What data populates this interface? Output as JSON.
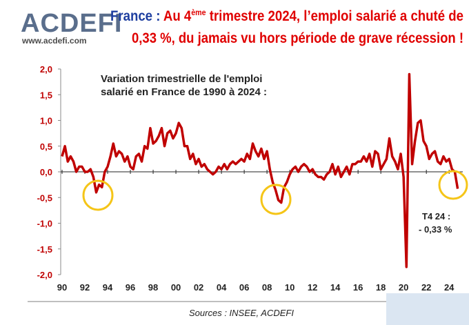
{
  "header": {
    "logo": "ACDEFI",
    "website": "www.acdefi.com",
    "title_label": "France :",
    "title": [
      "Au 4",
      "ème",
      "trimestre 2024, l’emploi salarié a chuté de",
      "0,33 %, du jamais vu hors période de grave récession !"
    ]
  },
  "chart_data": {
    "type": "line",
    "title": [
      "Variation trimestrielle de l'emploi",
      "salarié en France de 1990 à 2024 :"
    ],
    "annotation": [
      "T4 24 :",
      "- 0,33 %"
    ],
    "source": "Sources : INSEE, ACDEFI",
    "x": [
      1990,
      1990.25,
      1990.5,
      1990.75,
      1991,
      1991.25,
      1991.5,
      1991.75,
      1992,
      1992.25,
      1992.5,
      1992.75,
      1993,
      1993.25,
      1993.5,
      1993.75,
      1994,
      1994.25,
      1994.5,
      1994.75,
      1995,
      1995.25,
      1995.5,
      1995.75,
      1996,
      1996.25,
      1996.5,
      1996.75,
      1997,
      1997.25,
      1997.5,
      1997.75,
      1998,
      1998.25,
      1998.5,
      1998.75,
      1999,
      1999.25,
      1999.5,
      1999.75,
      2000,
      2000.25,
      2000.5,
      2000.75,
      2001,
      2001.25,
      2001.5,
      2001.75,
      2002,
      2002.25,
      2002.5,
      2002.75,
      2003,
      2003.25,
      2003.5,
      2003.75,
      2004,
      2004.25,
      2004.5,
      2004.75,
      2005,
      2005.25,
      2005.5,
      2005.75,
      2006,
      2006.25,
      2006.5,
      2006.75,
      2007,
      2007.25,
      2007.5,
      2007.75,
      2008,
      2008.25,
      2008.5,
      2008.75,
      2009,
      2009.25,
      2009.5,
      2009.75,
      2010,
      2010.25,
      2010.5,
      2010.75,
      2011,
      2011.25,
      2011.5,
      2011.75,
      2012,
      2012.25,
      2012.5,
      2012.75,
      2013,
      2013.25,
      2013.5,
      2013.75,
      2014,
      2014.25,
      2014.5,
      2014.75,
      2015,
      2015.25,
      2015.5,
      2015.75,
      2016,
      2016.25,
      2016.5,
      2016.75,
      2017,
      2017.25,
      2017.5,
      2017.75,
      2018,
      2018.25,
      2018.5,
      2018.75,
      2019,
      2019.25,
      2019.5,
      2019.75,
      2020,
      2020.25,
      2020.5,
      2020.75,
      2021,
      2021.25,
      2021.5,
      2021.75,
      2022,
      2022.25,
      2022.5,
      2022.75,
      2023,
      2023.25,
      2023.5,
      2023.75,
      2024,
      2024.25,
      2024.5,
      2024.75
    ],
    "series": [
      {
        "color": "#c00000",
        "values": [
          0.3,
          0.5,
          0.2,
          0.3,
          0.2,
          0.0,
          0.1,
          0.1,
          0.0,
          0.0,
          0.05,
          -0.1,
          -0.4,
          -0.25,
          -0.3,
          0.0,
          0.1,
          0.3,
          0.55,
          0.3,
          0.4,
          0.35,
          0.2,
          0.3,
          0.1,
          0.05,
          0.3,
          0.35,
          0.2,
          0.5,
          0.45,
          0.85,
          0.55,
          0.6,
          0.7,
          0.85,
          0.5,
          0.75,
          0.8,
          0.65,
          0.75,
          0.95,
          0.85,
          0.5,
          0.5,
          0.25,
          0.35,
          0.15,
          0.25,
          0.1,
          0.15,
          0.05,
          0.0,
          -0.05,
          0.0,
          0.1,
          0.05,
          0.15,
          0.05,
          0.15,
          0.2,
          0.15,
          0.2,
          0.25,
          0.2,
          0.35,
          0.25,
          0.55,
          0.4,
          0.3,
          0.45,
          0.25,
          0.4,
          0.05,
          -0.2,
          -0.35,
          -0.55,
          -0.6,
          -0.3,
          -0.2,
          -0.05,
          0.05,
          0.1,
          0.0,
          0.1,
          0.15,
          0.1,
          0.0,
          0.05,
          -0.05,
          -0.1,
          -0.1,
          -0.15,
          -0.05,
          0.0,
          0.15,
          -0.05,
          0.1,
          -0.1,
          0.0,
          0.1,
          -0.05,
          0.15,
          0.15,
          0.2,
          0.2,
          0.3,
          0.2,
          0.35,
          0.1,
          0.4,
          0.35,
          0.05,
          0.15,
          0.25,
          0.65,
          0.3,
          0.2,
          0.05,
          0.35,
          -0.1,
          -1.85,
          1.9,
          0.15,
          0.6,
          0.95,
          1.0,
          0.6,
          0.5,
          0.25,
          0.35,
          0.4,
          0.2,
          0.15,
          0.3,
          0.2,
          0.25,
          0.05,
          0.0,
          -0.33
        ]
      }
    ],
    "xlim": [
      1990,
      2025.2
    ],
    "xticks": [
      {
        "value": 1990,
        "label": "90"
      },
      {
        "value": 1992,
        "label": "92"
      },
      {
        "value": 1994,
        "label": "94"
      },
      {
        "value": 1996,
        "label": "96"
      },
      {
        "value": 1998,
        "label": "98"
      },
      {
        "value": 2000,
        "label": "00"
      },
      {
        "value": 2002,
        "label": "02"
      },
      {
        "value": 2004,
        "label": "04"
      },
      {
        "value": 2006,
        "label": "06"
      },
      {
        "value": 2008,
        "label": "08"
      },
      {
        "value": 2010,
        "label": "10"
      },
      {
        "value": 2012,
        "label": "12"
      },
      {
        "value": 2014,
        "label": "14"
      },
      {
        "value": 2016,
        "label": "16"
      },
      {
        "value": 2018,
        "label": "18"
      },
      {
        "value": 2020,
        "label": "20"
      },
      {
        "value": 2022,
        "label": "22"
      },
      {
        "value": 2024,
        "label": "24"
      }
    ],
    "ylim": [
      -2,
      2
    ],
    "yticks": [
      {
        "value": 2,
        "label": "2,0"
      },
      {
        "value": 1.5,
        "label": "1,5"
      },
      {
        "value": 1,
        "label": "1,0"
      },
      {
        "value": 0.5,
        "label": "0,5"
      },
      {
        "value": 0,
        "label": "0,0"
      },
      {
        "value": -0.5,
        "label": "-0,5"
      },
      {
        "value": -1,
        "label": "-1,0"
      },
      {
        "value": -1.5,
        "label": "-1,5"
      },
      {
        "value": -2,
        "label": "-2,0"
      }
    ]
  }
}
